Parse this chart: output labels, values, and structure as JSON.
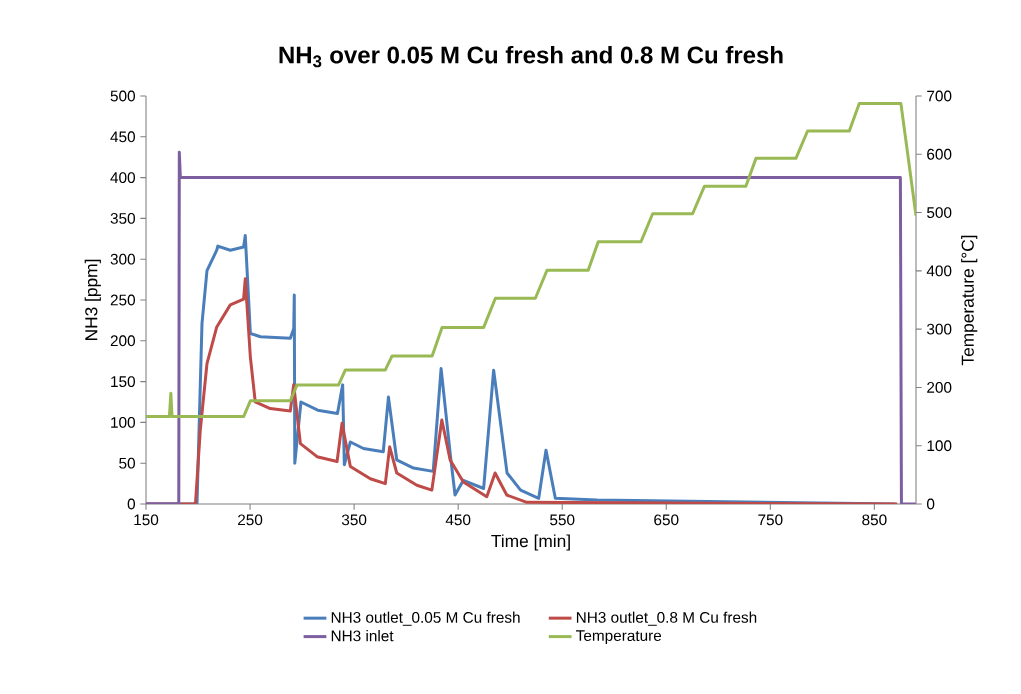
{
  "chart_data": {
    "type": "line",
    "title": "NH$_{3}$ over 0.05 M Cu fresh and 0.8 M Cu fresh",
    "xlabel": "Time [min]",
    "ylabel": "NH3 [ppm]",
    "y2label": "Temperature [°C]",
    "xlim": [
      150,
      890
    ],
    "xticks": [
      150,
      250,
      350,
      450,
      550,
      650,
      750,
      850
    ],
    "ylim": [
      0,
      500
    ],
    "yticks": [
      0,
      50,
      100,
      150,
      200,
      250,
      300,
      350,
      400,
      450,
      500
    ],
    "y2lim": [
      0,
      700
    ],
    "y2ticks": [
      0,
      100,
      200,
      300,
      400,
      500,
      600,
      700
    ],
    "legend": "bottom",
    "series": [
      {
        "name": "NH3 outlet_0.05 M Cu fresh",
        "color": "#4a7ebb",
        "x": [
          150,
          199,
          203.8,
          208.6,
          218,
          219,
          231,
          243.8,
          245.4,
          250.3,
          260,
          288.7,
          292,
          292.5,
          293,
          298.9,
          315,
          334,
          339,
          340.6,
          346.4,
          359,
          378,
          383,
          391,
          407,
          426,
          433.6,
          442.5,
          447,
          455,
          474.5,
          484.1,
          497,
          510,
          527.4,
          534.4,
          543.4,
          583.4,
          618.7,
          870
        ],
        "values": [
          0,
          0,
          221,
          286,
          311,
          316,
          311,
          315,
          329,
          209,
          205,
          203,
          215,
          256,
          50,
          125,
          115,
          111,
          146,
          48,
          76,
          68,
          64,
          131,
          54,
          44,
          40,
          166,
          60,
          11,
          29,
          19,
          164,
          38,
          17,
          7,
          66,
          7,
          5,
          null,
          0
        ]
      },
      {
        "name": "NH3 outlet_0.8 M Cu fresh",
        "color": "#be4b48",
        "x": [
          150,
          197.5,
          202.2,
          208.6,
          218,
          231,
          243.8,
          245.4,
          250.3,
          255,
          269.4,
          288.7,
          291.9,
          298.4,
          314.4,
          333.6,
          338.4,
          346.4,
          365.6,
          380,
          384.2,
          391,
          410.3,
          424.7,
          434.3,
          442.3,
          455,
          477.5,
          485.5,
          496.7,
          516,
          872
        ],
        "values": [
          0,
          0,
          91,
          172,
          217,
          244,
          251,
          276,
          180,
          125,
          117,
          114,
          146,
          74,
          58,
          52,
          99,
          46,
          31,
          25,
          70,
          38,
          23,
          17,
          103,
          54,
          27,
          9,
          38,
          11,
          2,
          0
        ]
      },
      {
        "name": "NH3 inlet",
        "color": "#7d5fa0",
        "x": [
          150,
          181.5,
          182,
          183,
          875,
          876,
          890
        ],
        "values": [
          0,
          0,
          431,
          400,
          400,
          0,
          0
        ]
      },
      {
        "name": "Temperature",
        "color": "#98b954",
        "axis": "y2",
        "x": [
          150,
          172.5,
          173.9,
          175,
          243.8,
          250.3,
          288.7,
          295,
          335,
          341.6,
          380,
          386.5,
          425,
          434.5,
          474.5,
          485.8,
          524.2,
          535.4,
          575,
          584.6,
          625.7,
          636.9,
          675.3,
          686.6,
          726.5,
          736.2,
          774.6,
          785.8,
          825.9,
          835.5,
          875.5,
          890
        ],
        "values": [
          150,
          150,
          190,
          150,
          150,
          177,
          177,
          204,
          204,
          230,
          230,
          254,
          254,
          303,
          303,
          353,
          353,
          401,
          401,
          450,
          450,
          498,
          498,
          545,
          545,
          593,
          593,
          640,
          640,
          687,
          687,
          495
        ]
      }
    ]
  }
}
